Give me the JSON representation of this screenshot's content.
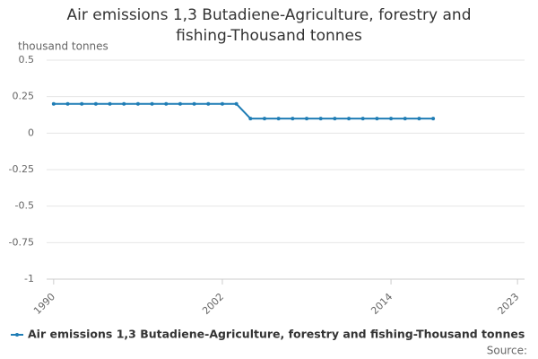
{
  "chart_data": {
    "type": "line",
    "title": "Air emissions 1,3 Butadiene-Agriculture, forestry and fishing-Thousand tonnes",
    "y_axis_label": "thousand tonnes",
    "x": [
      1990,
      1991,
      1992,
      1993,
      1994,
      1995,
      1996,
      1997,
      1998,
      1999,
      2000,
      2001,
      2002,
      2003,
      2004,
      2005,
      2006,
      2007,
      2008,
      2009,
      2010,
      2011,
      2012,
      2013,
      2014,
      2015,
      2016,
      2017
    ],
    "series": [
      {
        "name": "Air emissions 1,3 Butadiene-Agriculture, forestry and fishing-Thousand tonnes",
        "color": "#1f7db5",
        "values": [
          0.2,
          0.2,
          0.2,
          0.2,
          0.2,
          0.2,
          0.2,
          0.2,
          0.2,
          0.2,
          0.2,
          0.2,
          0.2,
          0.2,
          0.1,
          0.1,
          0.1,
          0.1,
          0.1,
          0.1,
          0.1,
          0.1,
          0.1,
          0.1,
          0.1,
          0.1,
          0.1,
          0.1
        ]
      }
    ],
    "xlim": [
      1989.5,
      2023.5
    ],
    "xticks": [
      1990,
      2002,
      2014,
      2023
    ],
    "ylim": [
      -1,
      0.5
    ],
    "yticks": [
      -1,
      -0.75,
      -0.5,
      -0.25,
      0,
      0.25,
      0.5
    ],
    "grid": true,
    "legend": "bottom",
    "source": "Source:"
  }
}
